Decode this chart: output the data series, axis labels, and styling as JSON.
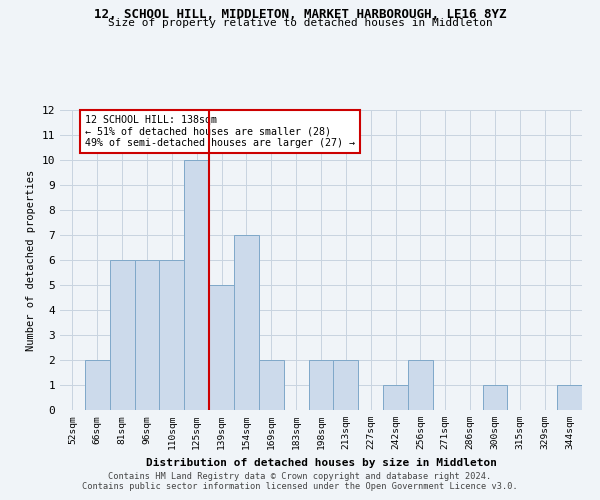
{
  "title": "12, SCHOOL HILL, MIDDLETON, MARKET HARBOROUGH, LE16 8YZ",
  "subtitle": "Size of property relative to detached houses in Middleton",
  "xlabel": "Distribution of detached houses by size in Middleton",
  "ylabel": "Number of detached properties",
  "categories": [
    "52sqm",
    "66sqm",
    "81sqm",
    "96sqm",
    "110sqm",
    "125sqm",
    "139sqm",
    "154sqm",
    "169sqm",
    "183sqm",
    "198sqm",
    "213sqm",
    "227sqm",
    "242sqm",
    "256sqm",
    "271sqm",
    "286sqm",
    "300sqm",
    "315sqm",
    "329sqm",
    "344sqm"
  ],
  "values": [
    0,
    2,
    6,
    6,
    6,
    10,
    5,
    7,
    2,
    0,
    2,
    2,
    0,
    1,
    2,
    0,
    0,
    1,
    0,
    0,
    1
  ],
  "bar_color": "#ccdaeb",
  "bar_edge_color": "#7fa8c9",
  "highlight_index": 6,
  "highlight_line_color": "#cc0000",
  "annotation_text": "12 SCHOOL HILL: 138sqm\n← 51% of detached houses are smaller (28)\n49% of semi-detached houses are larger (27) →",
  "annotation_box_color": "#cc0000",
  "ylim": [
    0,
    12
  ],
  "yticks": [
    0,
    1,
    2,
    3,
    4,
    5,
    6,
    7,
    8,
    9,
    10,
    11,
    12
  ],
  "footer_line1": "Contains HM Land Registry data © Crown copyright and database right 2024.",
  "footer_line2": "Contains public sector information licensed under the Open Government Licence v3.0.",
  "grid_color": "#c8d4e0",
  "bg_color": "#f0f4f8"
}
